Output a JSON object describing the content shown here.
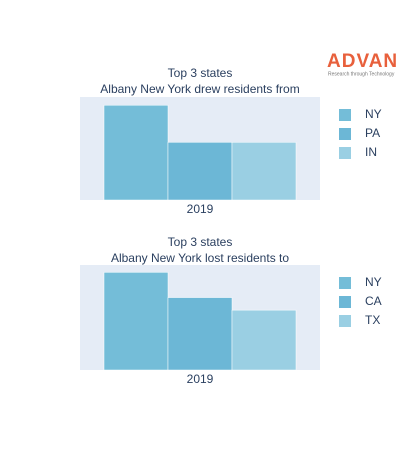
{
  "logo": {
    "text": "ADVAN",
    "tagline": "Research through Technology"
  },
  "chart_data": [
    {
      "type": "bar",
      "title": "Top 3 states",
      "subtitle": "Albany New York drew residents from",
      "categories": [
        "2019"
      ],
      "legend": "right",
      "ylim": [
        0,
        100
      ],
      "series": [
        {
          "name": "NY",
          "color": "#74bdd8",
          "values": [
            92
          ]
        },
        {
          "name": "PA",
          "color": "#6cb7d6",
          "values": [
            56
          ]
        },
        {
          "name": "IN",
          "color": "#9acfe3",
          "values": [
            56
          ]
        }
      ]
    },
    {
      "type": "bar",
      "title": "Top 3 states",
      "subtitle": "Albany New York lost residents to",
      "categories": [
        "2019"
      ],
      "legend": "right",
      "ylim": [
        0,
        100
      ],
      "series": [
        {
          "name": "NY",
          "color": "#74bdd8",
          "values": [
            93
          ]
        },
        {
          "name": "CA",
          "color": "#6cb7d6",
          "values": [
            69
          ]
        },
        {
          "name": "TX",
          "color": "#9acfe3",
          "values": [
            57
          ]
        }
      ]
    }
  ]
}
